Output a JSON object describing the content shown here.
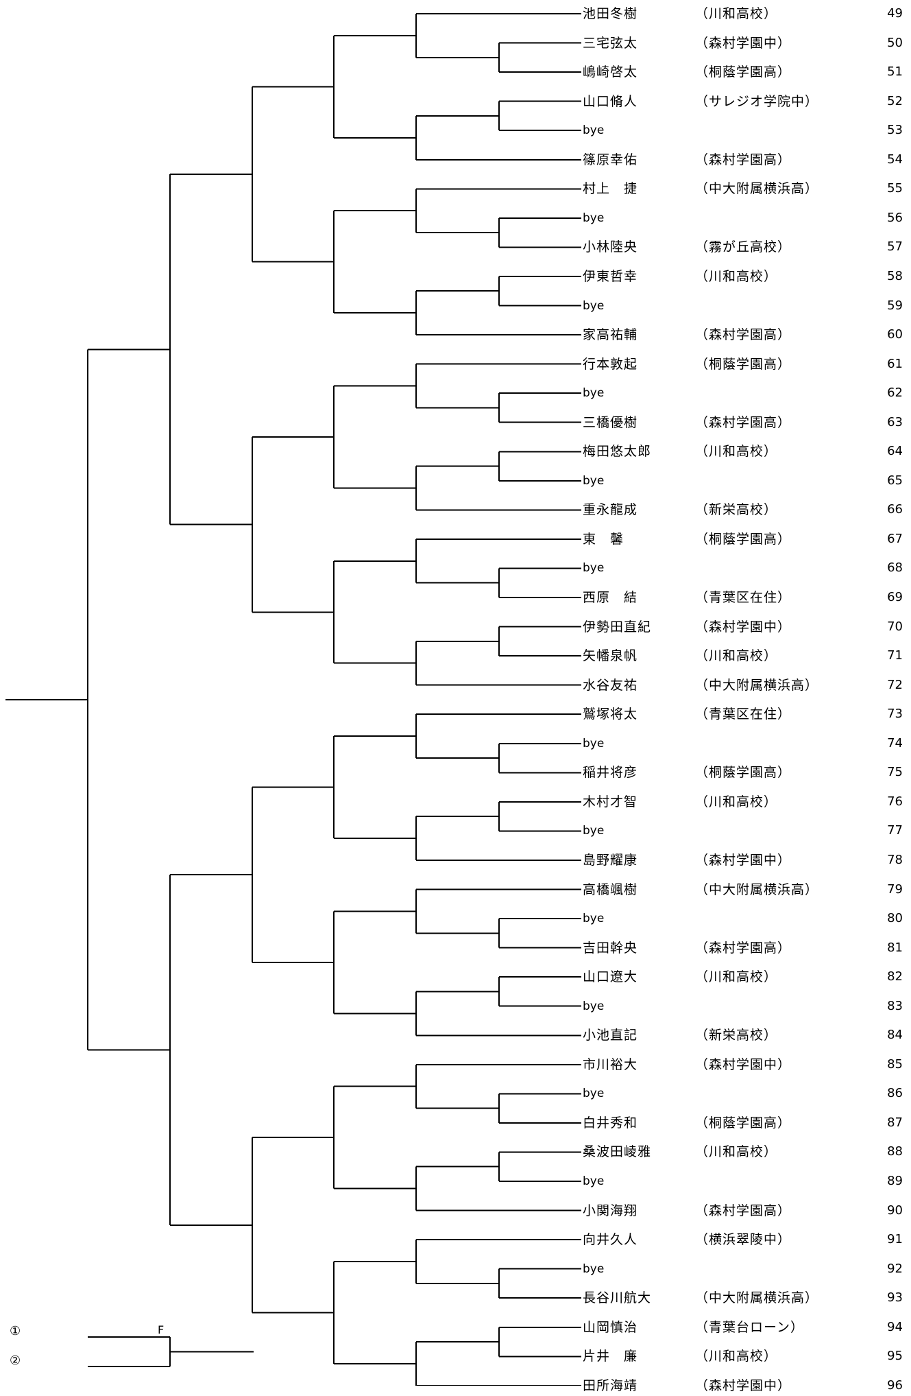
{
  "entries": [
    {
      "name": "池田冬樹",
      "club": "（川和高校）",
      "num": "49"
    },
    {
      "name": "三宅弦太",
      "club": "（森村学園中）",
      "num": "50"
    },
    {
      "name": "嶋崎啓太",
      "club": "（桐蔭学園高）",
      "num": "51"
    },
    {
      "name": "山口脩人",
      "club": "（サレジオ学院中）",
      "num": "52"
    },
    {
      "name": "bye",
      "club": "",
      "num": "53"
    },
    {
      "name": "篠原幸佑",
      "club": "（森村学園高）",
      "num": "54"
    },
    {
      "name": "村上　捷",
      "club": "（中大附属横浜高）",
      "num": "55"
    },
    {
      "name": "bye",
      "club": "",
      "num": "56"
    },
    {
      "name": "小林陸央",
      "club": "（霧が丘高校）",
      "num": "57"
    },
    {
      "name": "伊東哲幸",
      "club": "（川和高校）",
      "num": "58"
    },
    {
      "name": "bye",
      "club": "",
      "num": "59"
    },
    {
      "name": "家高祐輔",
      "club": "（森村学園高）",
      "num": "60"
    },
    {
      "name": "行本敦起",
      "club": "（桐蔭学園高）",
      "num": "61"
    },
    {
      "name": "bye",
      "club": "",
      "num": "62"
    },
    {
      "name": "三橋優樹",
      "club": "（森村学園高）",
      "num": "63"
    },
    {
      "name": "梅田悠太郎",
      "club": "（川和高校）",
      "num": "64"
    },
    {
      "name": "bye",
      "club": "",
      "num": "65"
    },
    {
      "name": "重永龍成",
      "club": "（新栄高校）",
      "num": "66"
    },
    {
      "name": "東　馨",
      "club": "（桐蔭学園高）",
      "num": "67"
    },
    {
      "name": "bye",
      "club": "",
      "num": "68"
    },
    {
      "name": "西原　結",
      "club": "（青葉区在住）",
      "num": "69"
    },
    {
      "name": "伊勢田直紀",
      "club": "（森村学園中）",
      "num": "70"
    },
    {
      "name": "矢幡泉帆",
      "club": "（川和高校）",
      "num": "71"
    },
    {
      "name": "水谷友祐",
      "club": "（中大附属横浜高）",
      "num": "72"
    },
    {
      "name": "鷲塚将太",
      "club": "（青葉区在住）",
      "num": "73"
    },
    {
      "name": "bye",
      "club": "",
      "num": "74"
    },
    {
      "name": "稲井将彦",
      "club": "（桐蔭学園高）",
      "num": "75"
    },
    {
      "name": "木村才智",
      "club": "（川和高校）",
      "num": "76"
    },
    {
      "name": "bye",
      "club": "",
      "num": "77"
    },
    {
      "name": "島野耀康",
      "club": "（森村学園中）",
      "num": "78"
    },
    {
      "name": "高橋颯樹",
      "club": "（中大附属横浜高）",
      "num": "79"
    },
    {
      "name": "bye",
      "club": "",
      "num": "80"
    },
    {
      "name": "吉田幹央",
      "club": "（森村学園高）",
      "num": "81"
    },
    {
      "name": "山口遼大",
      "club": "（川和高校）",
      "num": "82"
    },
    {
      "name": "bye",
      "club": "",
      "num": "83"
    },
    {
      "name": "小池直記",
      "club": "（新栄高校）",
      "num": "84"
    },
    {
      "name": "市川裕大",
      "club": "（森村学園中）",
      "num": "85"
    },
    {
      "name": "bye",
      "club": "",
      "num": "86"
    },
    {
      "name": "白井秀和",
      "club": "（桐蔭学園高）",
      "num": "87"
    },
    {
      "name": "桑波田崚雅",
      "club": "（川和高校）",
      "num": "88"
    },
    {
      "name": "bye",
      "club": "",
      "num": "89"
    },
    {
      "name": "小関海翔",
      "club": "（森村学園高）",
      "num": "90"
    },
    {
      "name": "向井久人",
      "club": "（横浜翠陵中）",
      "num": "91"
    },
    {
      "name": "bye",
      "club": "",
      "num": "92"
    },
    {
      "name": "長谷川航大",
      "club": "（中大附属横浜高）",
      "num": "93"
    },
    {
      "name": "山岡慎治",
      "club": "（青葉台ローン）",
      "num": "94"
    },
    {
      "name": "片井　廉",
      "club": "（川和高校）",
      "num": "95"
    },
    {
      "name": "田所海靖",
      "club": "（森村学園中）",
      "num": "96"
    }
  ],
  "final_slots": {
    "first": "①",
    "second": "②",
    "label": "F"
  }
}
